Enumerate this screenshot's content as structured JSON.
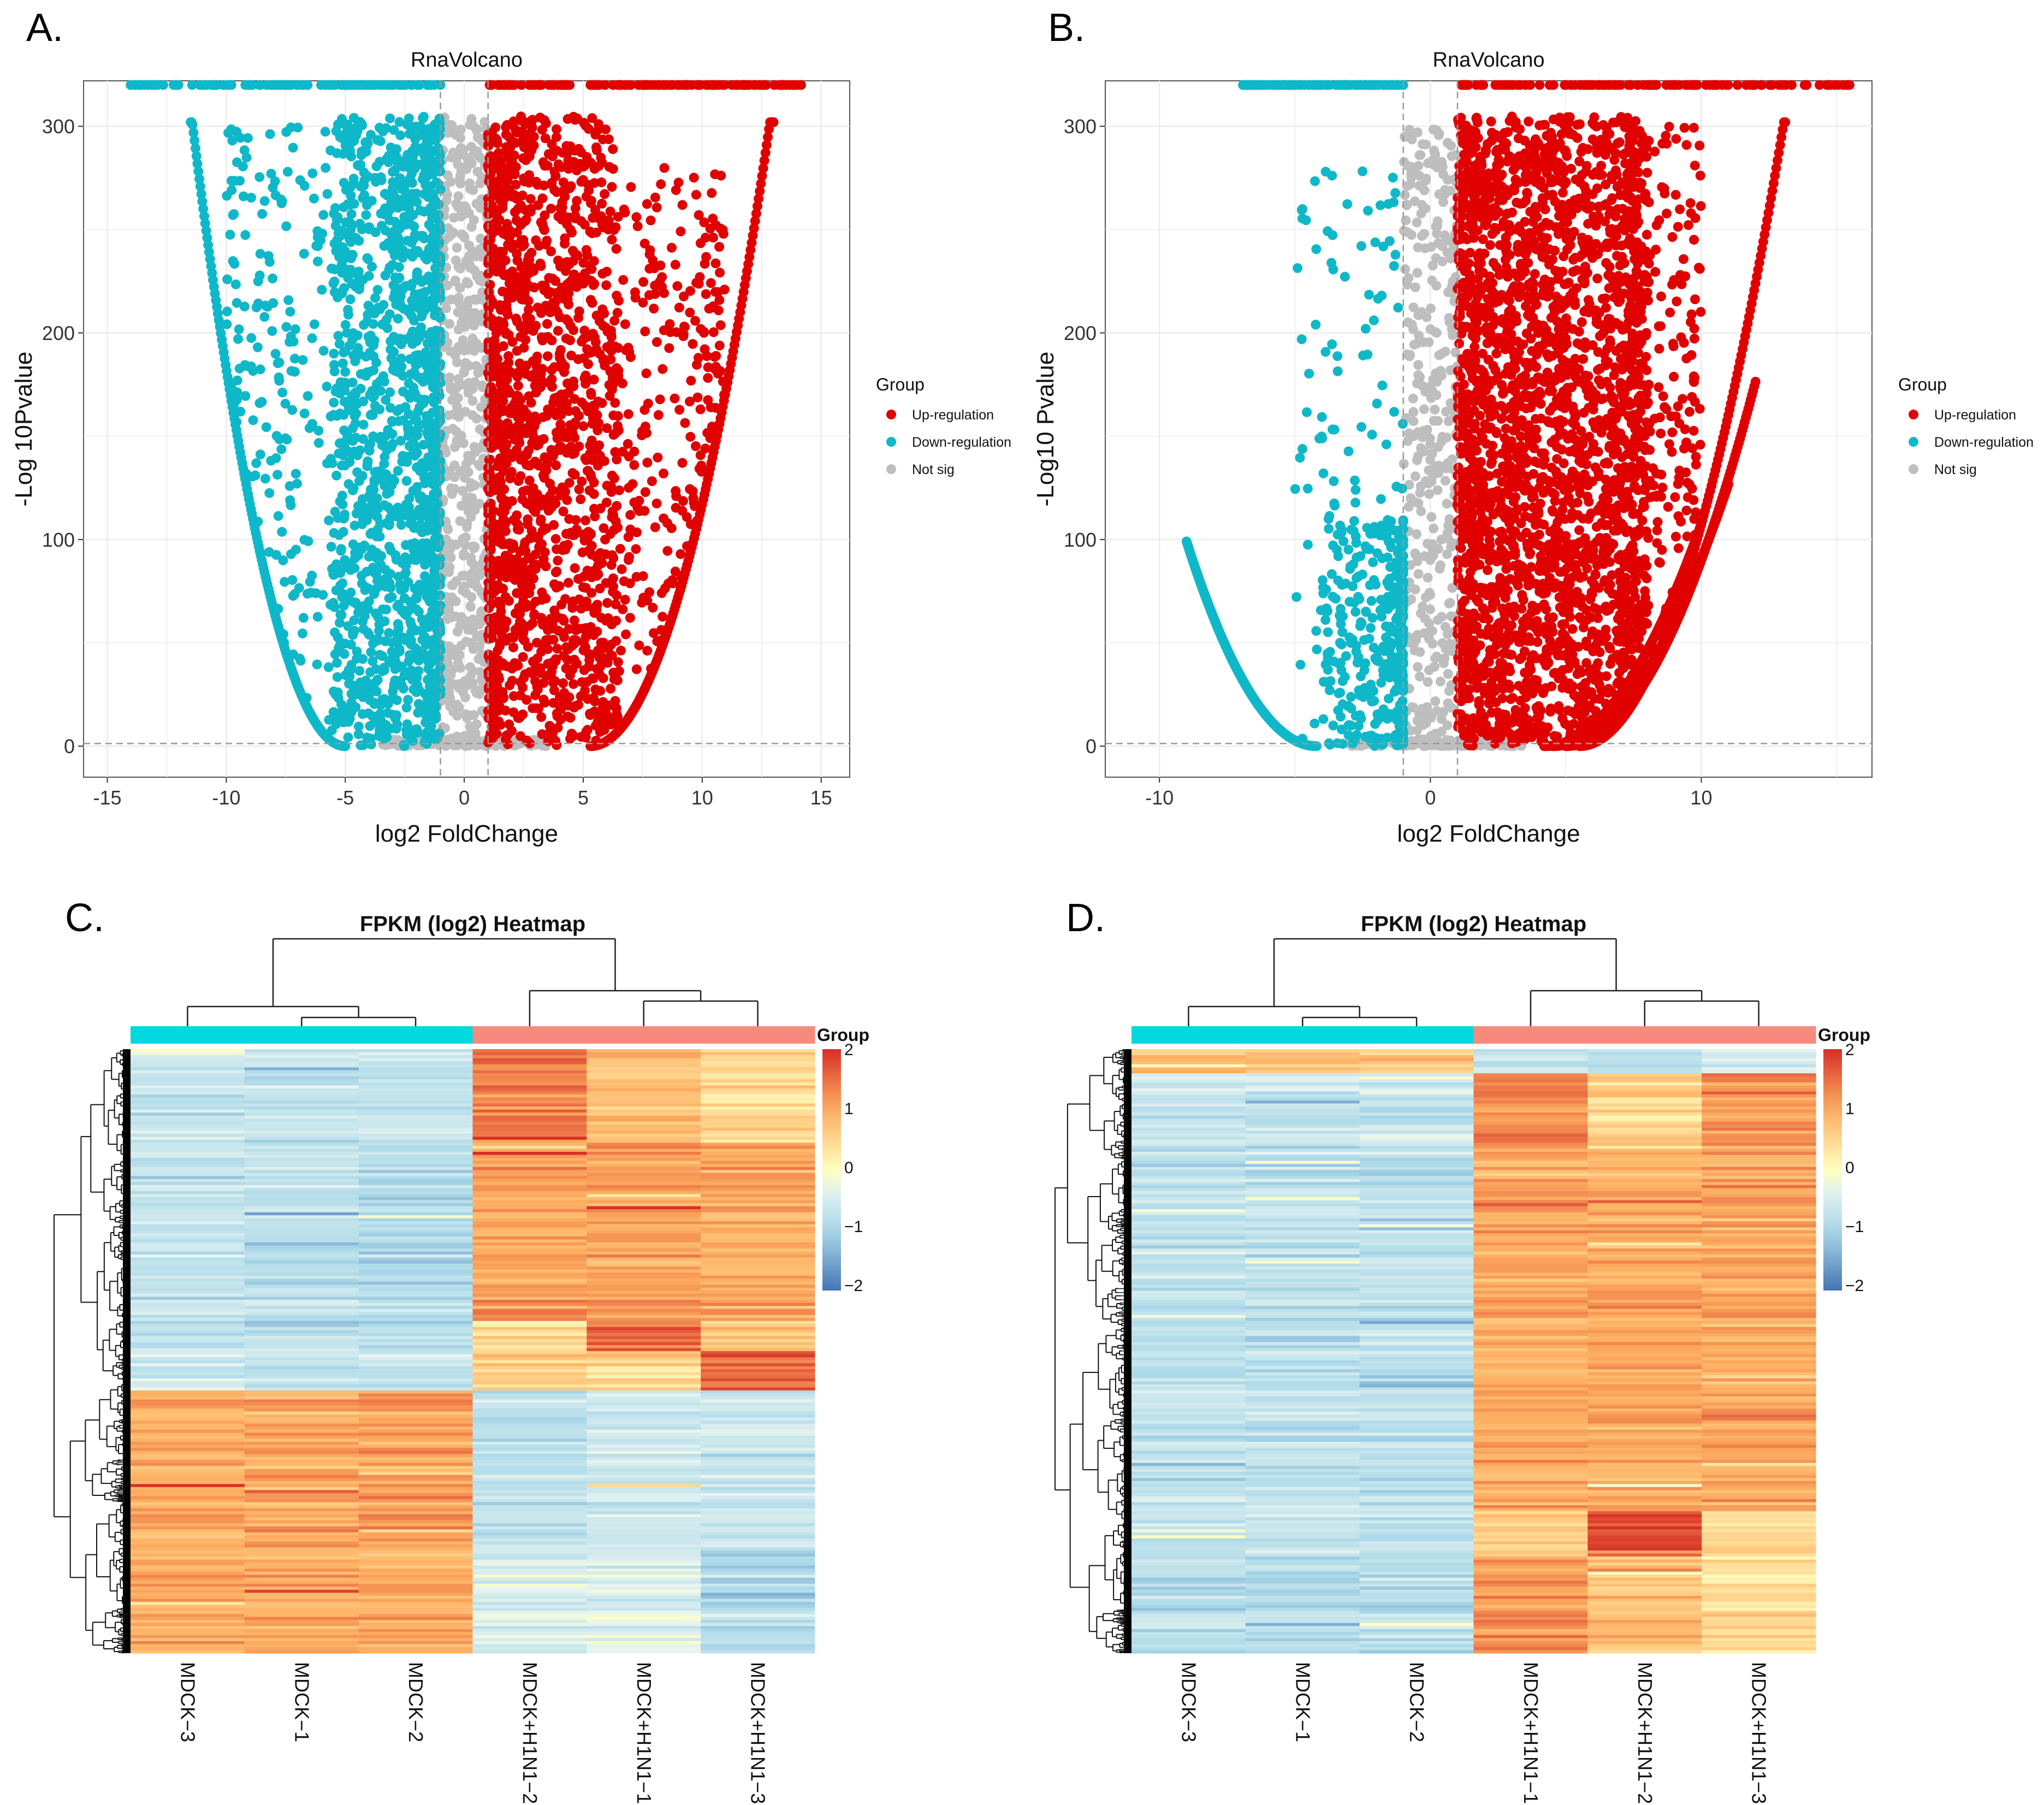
{
  "colors": {
    "up": "#E00000",
    "down": "#0FB8C8",
    "notsig": "#BEBEBE",
    "group_ctrl": "#00D9DF",
    "group_h1n1": "#F78A7E"
  },
  "chart_data": [
    {
      "panel": "A.",
      "type": "scatter",
      "title": "RnaVolcano",
      "xlabel": "log2 FoldChange",
      "ylabel": "-Log 10Pvalue",
      "xlim": [
        -16,
        16.2
      ],
      "ylim": [
        -15,
        322
      ],
      "xticks": [
        "-15",
        "-10",
        "-5",
        "0",
        "5",
        "10",
        "15"
      ],
      "xtick_values": [
        -15,
        -10,
        -5,
        0,
        5,
        10,
        15
      ],
      "yticks": [
        "0",
        "100",
        "200",
        "300"
      ],
      "ytick_values": [
        0,
        100,
        200,
        300
      ],
      "grid": true,
      "fc_threshold": 1,
      "pvalue_line": 1.3,
      "cap_value": 320,
      "legend": {
        "title": "Group",
        "placement": "right",
        "items": [
          "Up-regulation",
          "Down-regulation",
          "Not sig"
        ]
      },
      "series": [
        {
          "name": "Down-regulation",
          "curves": [
            {
              "x0": -5,
              "k": 7.3,
              "xfrom": -11.5,
              "xto": -5
            }
          ],
          "clusters": [
            {
              "xmin": -5.5,
              "xmax": -1,
              "ymax": 305,
              "n": 1400,
              "skew": 1.6
            },
            {
              "xmin": -10,
              "xmax": -5,
              "ymax": 300,
              "n": 220,
              "skew": 1
            }
          ],
          "capped_x_range": [
            -14.5,
            -1
          ]
        },
        {
          "name": "Up-regulation",
          "curves": [
            {
              "x0": 5.3,
              "k": 5.3,
              "xfrom": 5.3,
              "xto": 13
            }
          ],
          "clusters": [
            {
              "xmin": 1,
              "xmax": 6.5,
              "ymax": 305,
              "n": 1500,
              "skew": 1.6
            },
            {
              "xmin": 5,
              "xmax": 11,
              "ymax": 280,
              "n": 300,
              "skew": 1
            }
          ],
          "capped_x_range": [
            1,
            14.2
          ]
        },
        {
          "name": "Not sig",
          "clusters": [
            {
              "xmin": -1,
              "xmax": 1,
              "ymax": 305,
              "n": 500,
              "skew": 1
            },
            {
              "xmin": -3.5,
              "xmax": 3.5,
              "ymax": 3,
              "n": 200,
              "skew": 1
            }
          ]
        }
      ]
    },
    {
      "panel": "B.",
      "type": "scatter",
      "title": "RnaVolcano",
      "xlabel": "log2 FoldChange",
      "ylabel": "-Log10 Pvalue",
      "xlim": [
        -12,
        16.3
      ],
      "ylim": [
        -15,
        322
      ],
      "xticks": [
        "-10",
        "0",
        "10"
      ],
      "xtick_values": [
        -10,
        0,
        10
      ],
      "yticks": [
        "0",
        "100",
        "200",
        "300"
      ],
      "ytick_values": [
        0,
        100,
        200,
        300
      ],
      "grid": true,
      "fc_threshold": 1,
      "pvalue_line": 1.3,
      "cap_value": 320,
      "legend": {
        "title": "Group",
        "placement": "right",
        "items": [
          "Up-regulation",
          "Down-regulation",
          "Not sig"
        ]
      },
      "series": [
        {
          "name": "Down-regulation",
          "curves": [
            {
              "x0": -4.2,
              "k": 4.3,
              "xfrom": -9,
              "xto": -4.2
            }
          ],
          "clusters": [
            {
              "xmin": -4,
              "xmax": -1,
              "ymax": 110,
              "n": 350,
              "skew": 2.5
            },
            {
              "xmin": -5,
              "xmax": -1,
              "ymax": 280,
              "n": 120,
              "skew": 1
            }
          ],
          "capped_x_range": [
            -7,
            -1
          ]
        },
        {
          "name": "Up-regulation",
          "curves": [
            {
              "x0": 5.5,
              "k": 5.3,
              "xfrom": 5.5,
              "xto": 13.1
            },
            {
              "x0": 5,
              "k": 3.6,
              "xfrom": 5,
              "xto": 12
            },
            {
              "x0": 4.5,
              "k": 3,
              "xfrom": 4.5,
              "xto": 11
            },
            {
              "x0": 4.2,
              "k": 3.2,
              "xfrom": 4.2,
              "xto": 10
            }
          ],
          "clusters": [
            {
              "xmin": 1,
              "xmax": 8,
              "ymax": 305,
              "n": 2600,
              "skew": 1.3
            },
            {
              "xmin": 7,
              "xmax": 10,
              "ymax": 300,
              "n": 250,
              "skew": 1
            }
          ],
          "capped_x_range": [
            1,
            15.5
          ]
        },
        {
          "name": "Not sig",
          "clusters": [
            {
              "xmin": -1,
              "xmax": 1,
              "ymax": 300,
              "n": 350,
              "skew": 2
            },
            {
              "xmin": -3,
              "xmax": 3.5,
              "ymax": 3,
              "n": 200,
              "skew": 1
            }
          ]
        }
      ]
    },
    {
      "panel": "C.",
      "type": "heatmap",
      "title": "FPKM (log2) Heatmap",
      "columns": [
        "MDCK−3",
        "MDCK−1",
        "MDCK−2",
        "MDCK+H1N1−2",
        "MDCK+H1N1−1",
        "MDCK+H1N1−3"
      ],
      "groups": [
        "ctrl",
        "ctrl",
        "ctrl",
        "h1n1",
        "h1n1",
        "h1n1"
      ],
      "legend": {
        "title": "Group",
        "ticks": [
          "2",
          "1",
          "0",
          "−1",
          "−2"
        ],
        "range": [
          -2,
          2
        ]
      },
      "row_blocks": [
        {
          "rows": 30,
          "values": [
            -0.6,
            -0.7,
            -0.7,
            1.4,
            0.8,
            0.5
          ]
        },
        {
          "rows": 60,
          "values": [
            -0.7,
            -0.8,
            -0.9,
            1.1,
            1.1,
            1.0
          ]
        },
        {
          "rows": 10,
          "values": [
            -0.7,
            -0.8,
            -0.8,
            0.4,
            1.6,
            0.7
          ]
        },
        {
          "rows": 13,
          "values": [
            -0.6,
            -0.7,
            -0.7,
            0.6,
            0.5,
            1.6
          ]
        },
        {
          "rows": 52,
          "values": [
            1.0,
            1.0,
            1.1,
            -0.8,
            -0.6,
            -0.6
          ]
        },
        {
          "rows": 35,
          "values": [
            1.0,
            1.0,
            1.0,
            -0.5,
            -0.4,
            -0.9
          ]
        }
      ]
    },
    {
      "panel": "D.",
      "type": "heatmap",
      "title": "FPKM (log2) Heatmap",
      "columns": [
        "MDCK−3",
        "MDCK−1",
        "MDCK−2",
        "MDCK+H1N1−1",
        "MDCK+H1N1−2",
        "MDCK+H1N1−3"
      ],
      "groups": [
        "ctrl",
        "ctrl",
        "ctrl",
        "h1n1",
        "h1n1",
        "h1n1"
      ],
      "legend": {
        "title": "Group",
        "ticks": [
          "2",
          "1",
          "0",
          "−1",
          "−2"
        ],
        "range": [
          -2,
          2
        ]
      },
      "row_blocks": [
        {
          "rows": 8,
          "values": [
            0.9,
            0.9,
            0.8,
            -0.6,
            -0.7,
            -0.4
          ]
        },
        {
          "rows": 25,
          "values": [
            -0.7,
            -0.7,
            -0.7,
            1.3,
            0.5,
            1.2
          ]
        },
        {
          "rows": 120,
          "values": [
            -0.8,
            -0.8,
            -0.8,
            1.0,
            1.0,
            1.0
          ]
        },
        {
          "rows": 15,
          "values": [
            -0.8,
            -0.7,
            -0.8,
            0.5,
            1.7,
            0.4
          ]
        },
        {
          "rows": 32,
          "values": [
            -0.8,
            -0.8,
            -0.8,
            1.2,
            0.8,
            0.5
          ]
        }
      ]
    }
  ]
}
